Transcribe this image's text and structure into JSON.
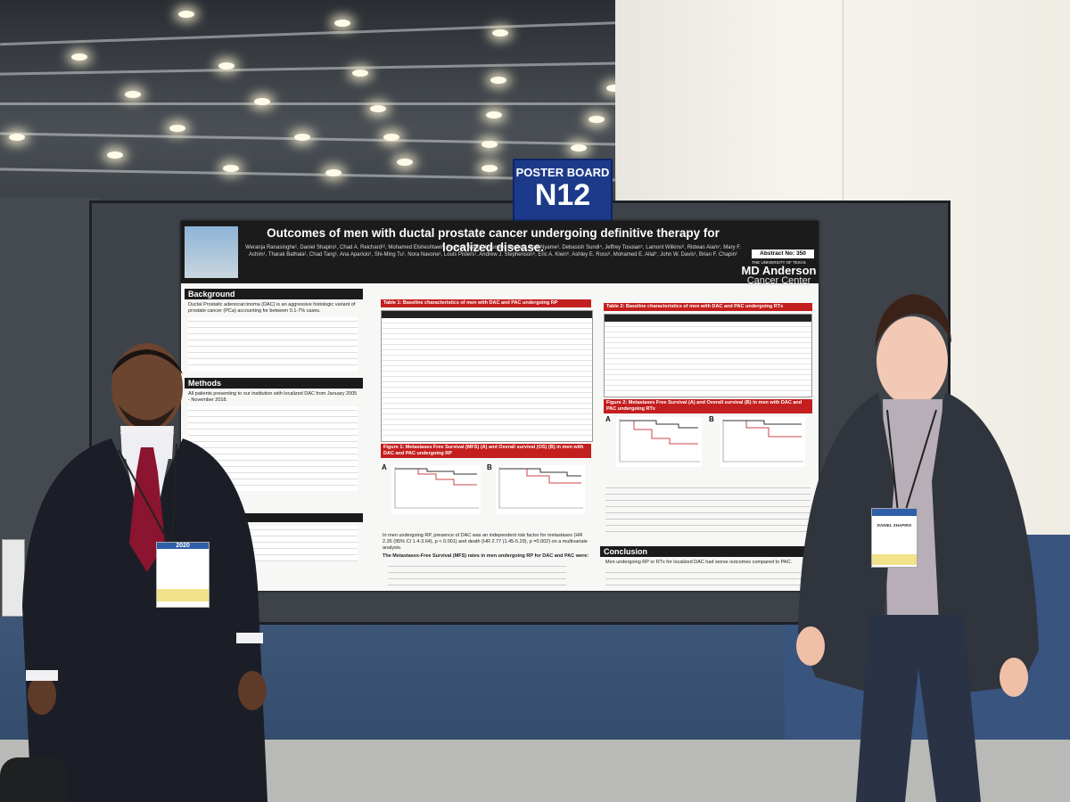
{
  "sign": {
    "line1": "POSTER BOARD",
    "line2": "N12"
  },
  "poster": {
    "title": "Outcomes of men with ductal prostate cancer undergoing definitive therapy for localized disease.",
    "authors": "Weranja Ranasinghe¹, Daniel Shapiro¹, Chad A. Reichard¹², Mohamed Elsheshtawi¹, Xuemei Wang¹, Hyunsoo Hwang¹, Yaw Nyame³, Debasish Sundi⁴, Jeffrey Tosoian⁵, Lamont Wilkins⁶, Ridwan Alam⁷, Mary F. Achim¹, Tharak Bathala¹, Chad Tang¹, Ana Aparicio¹, Shi-Ming Tu¹, Nora Navone¹, Louis Pisters¹, Andrew J. Stephenson⁶, Eric A. Klein⁶, Ashley E. Ross⁸, Mohamed E. Allaf⁷, John W. Davis¹, Brian F. Chapin¹",
    "abstract": "Abstract No: 350",
    "institution_small": "THE UNIVERSITY OF TEXAS",
    "institution_main": "MD Anderson",
    "institution_sub": "Cancer Center",
    "background_h": "Background",
    "background_text": "Ductal Prostatic adenocarcinoma (DAC) is an aggressive histologic variant of prostate cancer (PCa) accounting for between 0.1-7% cases.",
    "methods_h": "Methods",
    "methods_text": "All patients presenting to our institution with localized DAC from January 2005 - November 2018.",
    "table1_h": "Table 1: Baseline characteristics of men with DAC and PAC undergoing RP",
    "table2_h": "Table 2: Baseline characteristics of men with DAC and PAC undergoing RTx",
    "fig1_h": "Figure 1: Metastases Free Survival (MFS) (A) and Overall survival (OS) (B) in men with DAC and PAC undergoing RP",
    "fig2_h": "Figure 2: Metastases Free Survival (A) and Overall survival (B) in men with DAC and PAC undergoing RTx",
    "results_text": "In men undergoing RP, presence of DAC was an independent risk factor for metastases (HR 2.26 (95% CI 1.4-3.64), p < 0.001) and death (HR 2.77 (1.45-5.29), p =0.002) on a multivariate analysis.",
    "mfs_rp": "The Metastases-Free Survival (MFS) rates in men undergoing RP for DAC and PAC were:",
    "conclusion_h": "Conclusion",
    "conclusion_text": "Men undergoing RP or RTx for localized DAC had worse outcomes compared to PAC."
  },
  "badge_left": "2020",
  "badge_right": "DANIEL SHAPIRO"
}
